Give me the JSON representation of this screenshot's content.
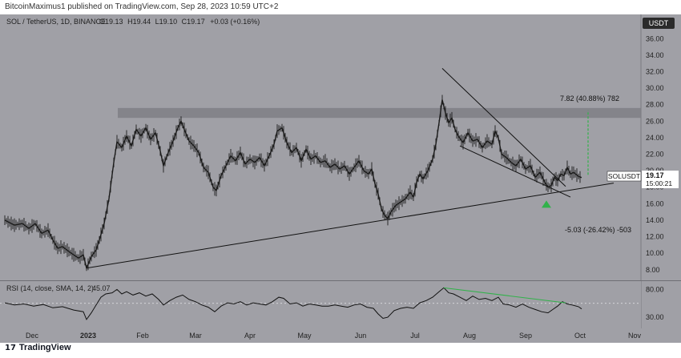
{
  "header": {
    "publish_note": "BitcoinMaximus1 published on TradingView.com, Sep 28, 2023 10:59 UTC+2"
  },
  "symbol": {
    "title": "SOL / TetherUS, 1D, BINANCE",
    "o_label": "O",
    "o": "19.13",
    "h_label": "H",
    "h": "19.44",
    "l_label": "L",
    "l": "19.10",
    "c_label": "C",
    "c": "19.17",
    "change": "+0.03 (+0.16%)"
  },
  "currency": "USDT",
  "price_label": {
    "ticker": "SOLUSDT",
    "price": "19.17",
    "countdown": "15:00:21"
  },
  "annotations": {
    "upside": "7.82 (40.88%) 782",
    "downside": "-5.03 (-26.42%) -503"
  },
  "rsi": {
    "legend": "RSI (14, close, SMA, 14, 2)",
    "value": "45.07"
  },
  "footer": {
    "brand": "TradingView",
    "logo": "17"
  },
  "colors": {
    "pane_bg": "#a0a0a6",
    "accent": "#31b24a",
    "candle": "#1b1b1b"
  },
  "chart_data": {
    "type": "candlestick",
    "x_ticks": [
      "Dec",
      "2023",
      "Feb",
      "Mar",
      "Apr",
      "May",
      "Jun",
      "Jul",
      "Aug",
      "Sep",
      "Oct",
      "Nov"
    ],
    "y_ticks": [
      "8.00",
      "10.00",
      "12.00",
      "14.00",
      "16.00",
      "18.00",
      "20.00",
      "22.00",
      "24.00",
      "26.00",
      "28.00",
      "30.00",
      "32.00",
      "34.00",
      "36.00"
    ],
    "ylim": [
      7.2,
      37.0
    ],
    "resistance_zone": [
      26.4,
      27.6
    ],
    "rsi_ticks": [
      "80.00",
      "30.00"
    ],
    "price_path": [
      [
        0,
        14.0
      ],
      [
        12,
        13.4
      ],
      [
        22,
        13.6
      ],
      [
        30,
        13.0
      ],
      [
        38,
        13.6
      ],
      [
        46,
        12.4
      ],
      [
        54,
        12.8
      ],
      [
        60,
        11.6
      ],
      [
        66,
        10.6
      ],
      [
        72,
        10.8
      ],
      [
        80,
        10.2
      ],
      [
        86,
        9.8
      ],
      [
        92,
        9.4
      ],
      [
        98,
        9.8
      ],
      [
        102,
        8.2
      ],
      [
        108,
        9.6
      ],
      [
        114,
        10.4
      ],
      [
        118,
        11.6
      ],
      [
        124,
        13.6
      ],
      [
        130,
        16.6
      ],
      [
        136,
        21.0
      ],
      [
        140,
        23.5
      ],
      [
        146,
        22.8
      ],
      [
        152,
        24.2
      ],
      [
        158,
        23.0
      ],
      [
        164,
        25.0
      ],
      [
        170,
        24.2
      ],
      [
        176,
        25.2
      ],
      [
        182,
        23.8
      ],
      [
        188,
        24.6
      ],
      [
        194,
        22.4
      ],
      [
        198,
        20.6
      ],
      [
        204,
        22.2
      ],
      [
        210,
        23.6
      ],
      [
        216,
        25.2
      ],
      [
        220,
        26.0
      ],
      [
        224,
        25.0
      ],
      [
        230,
        23.6
      ],
      [
        236,
        23.0
      ],
      [
        242,
        22.2
      ],
      [
        248,
        20.4
      ],
      [
        254,
        19.8
      ],
      [
        260,
        18.0
      ],
      [
        264,
        17.6
      ],
      [
        270,
        19.4
      ],
      [
        276,
        20.6
      ],
      [
        282,
        21.8
      ],
      [
        288,
        21.2
      ],
      [
        294,
        22.2
      ],
      [
        300,
        20.8
      ],
      [
        306,
        21.4
      ],
      [
        312,
        21.0
      ],
      [
        318,
        21.6
      ],
      [
        324,
        20.6
      ],
      [
        330,
        21.8
      ],
      [
        336,
        23.2
      ],
      [
        340,
        24.8
      ],
      [
        346,
        25.2
      ],
      [
        352,
        23.4
      ],
      [
        358,
        22.2
      ],
      [
        364,
        22.8
      ],
      [
        370,
        21.2
      ],
      [
        376,
        22.6
      ],
      [
        382,
        21.4
      ],
      [
        388,
        21.8
      ],
      [
        394,
        21.0
      ],
      [
        400,
        21.2
      ],
      [
        406,
        20.4
      ],
      [
        412,
        20.8
      ],
      [
        418,
        20.2
      ],
      [
        424,
        20.6
      ],
      [
        430,
        19.6
      ],
      [
        436,
        20.4
      ],
      [
        442,
        21.2
      ],
      [
        448,
        20.0
      ],
      [
        454,
        19.6
      ],
      [
        458,
        20.2
      ],
      [
        462,
        18.4
      ],
      [
        466,
        17.2
      ],
      [
        470,
        15.4
      ],
      [
        474,
        14.6
      ],
      [
        478,
        14.2
      ],
      [
        482,
        15.0
      ],
      [
        488,
        15.8
      ],
      [
        494,
        16.2
      ],
      [
        500,
        16.6
      ],
      [
        506,
        17.4
      ],
      [
        510,
        16.8
      ],
      [
        514,
        18.6
      ],
      [
        518,
        19.6
      ],
      [
        522,
        19.0
      ],
      [
        528,
        20.0
      ],
      [
        534,
        21.4
      ],
      [
        538,
        23.2
      ],
      [
        542,
        25.8
      ],
      [
        546,
        28.6
      ],
      [
        550,
        27.0
      ],
      [
        554,
        25.8
      ],
      [
        558,
        26.4
      ],
      [
        562,
        25.0
      ],
      [
        566,
        24.2
      ],
      [
        572,
        23.4
      ],
      [
        578,
        24.6
      ],
      [
        584,
        23.6
      ],
      [
        590,
        23.8
      ],
      [
        596,
        22.8
      ],
      [
        602,
        23.6
      ],
      [
        608,
        23.2
      ],
      [
        612,
        24.8
      ],
      [
        616,
        24.0
      ],
      [
        620,
        22.0
      ],
      [
        626,
        21.6
      ],
      [
        632,
        21.0
      ],
      [
        638,
        20.6
      ],
      [
        644,
        21.4
      ],
      [
        650,
        20.2
      ],
      [
        656,
        20.6
      ],
      [
        662,
        19.2
      ],
      [
        668,
        19.8
      ],
      [
        674,
        18.6
      ],
      [
        678,
        18.0
      ],
      [
        682,
        18.2
      ],
      [
        686,
        19.2
      ],
      [
        690,
        18.8
      ],
      [
        694,
        19.6
      ],
      [
        698,
        19.4
      ],
      [
        702,
        20.4
      ],
      [
        706,
        19.6
      ],
      [
        710,
        19.8
      ],
      [
        716,
        19.3
      ],
      [
        720,
        19.17
      ]
    ],
    "rsi_path": [
      [
        0,
        56
      ],
      [
        12,
        52
      ],
      [
        24,
        54
      ],
      [
        36,
        50
      ],
      [
        48,
        53
      ],
      [
        60,
        47
      ],
      [
        72,
        49
      ],
      [
        86,
        43
      ],
      [
        98,
        40
      ],
      [
        102,
        26
      ],
      [
        108,
        38
      ],
      [
        114,
        52
      ],
      [
        120,
        66
      ],
      [
        126,
        72
      ],
      [
        134,
        74
      ],
      [
        140,
        80
      ],
      [
        146,
        72
      ],
      [
        152,
        76
      ],
      [
        160,
        70
      ],
      [
        168,
        74
      ],
      [
        176,
        68
      ],
      [
        184,
        72
      ],
      [
        192,
        62
      ],
      [
        198,
        52
      ],
      [
        206,
        60
      ],
      [
        214,
        66
      ],
      [
        222,
        70
      ],
      [
        230,
        62
      ],
      [
        238,
        58
      ],
      [
        246,
        52
      ],
      [
        254,
        48
      ],
      [
        262,
        40
      ],
      [
        270,
        50
      ],
      [
        278,
        56
      ],
      [
        286,
        54
      ],
      [
        294,
        58
      ],
      [
        302,
        52
      ],
      [
        310,
        56
      ],
      [
        318,
        54
      ],
      [
        326,
        52
      ],
      [
        334,
        58
      ],
      [
        342,
        66
      ],
      [
        348,
        64
      ],
      [
        356,
        54
      ],
      [
        364,
        56
      ],
      [
        372,
        50
      ],
      [
        380,
        54
      ],
      [
        388,
        52
      ],
      [
        396,
        50
      ],
      [
        404,
        50
      ],
      [
        412,
        52
      ],
      [
        420,
        50
      ],
      [
        428,
        48
      ],
      [
        436,
        52
      ],
      [
        444,
        54
      ],
      [
        452,
        48
      ],
      [
        460,
        46
      ],
      [
        466,
        36
      ],
      [
        472,
        28
      ],
      [
        478,
        30
      ],
      [
        486,
        42
      ],
      [
        494,
        46
      ],
      [
        502,
        48
      ],
      [
        510,
        46
      ],
      [
        518,
        56
      ],
      [
        526,
        60
      ],
      [
        534,
        66
      ],
      [
        542,
        76
      ],
      [
        548,
        83
      ],
      [
        554,
        74
      ],
      [
        560,
        72
      ],
      [
        568,
        66
      ],
      [
        576,
        60
      ],
      [
        584,
        68
      ],
      [
        592,
        62
      ],
      [
        600,
        64
      ],
      [
        608,
        60
      ],
      [
        616,
        66
      ],
      [
        622,
        54
      ],
      [
        630,
        52
      ],
      [
        638,
        48
      ],
      [
        646,
        54
      ],
      [
        654,
        48
      ],
      [
        662,
        44
      ],
      [
        670,
        40
      ],
      [
        678,
        38
      ],
      [
        684,
        44
      ],
      [
        690,
        50
      ],
      [
        696,
        58
      ],
      [
        702,
        54
      ],
      [
        708,
        52
      ],
      [
        716,
        49
      ],
      [
        720,
        45.07
      ]
    ],
    "rsi_ylim": [
      10,
      95
    ],
    "rsi_midline": 55,
    "trendlines": [
      {
        "name": "ascending-support",
        "points": [
          [
            102,
            8.2
          ],
          [
            760,
            18.5
          ]
        ]
      },
      {
        "name": "descending-resistance",
        "points": [
          [
            546,
            32.4
          ],
          [
            700,
            18.1
          ]
        ]
      },
      {
        "name": "wedge-support",
        "points": [
          [
            568,
            23.0
          ],
          [
            706,
            16.8
          ]
        ]
      }
    ],
    "rsi_divergence": [
      [
        548,
        83
      ],
      [
        700,
        56
      ]
    ],
    "target_measure": {
      "x": 734,
      "from": 19.5,
      "to": 27.3
    },
    "signal_arrow": {
      "x": 682,
      "y": 15.7
    }
  }
}
